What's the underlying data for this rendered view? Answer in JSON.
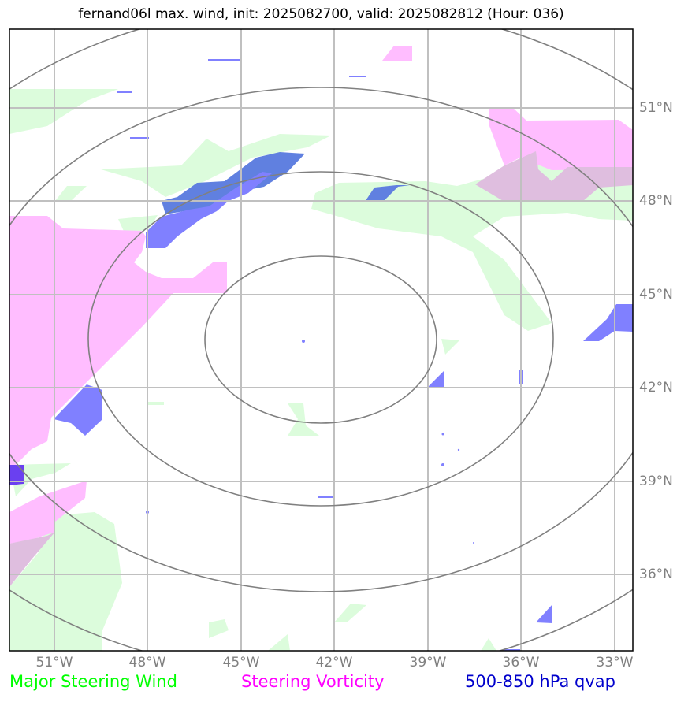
{
  "title": "fernand06l max. wind, init: 2025082700, valid: 2025082812 (Hour: 036)",
  "x_ticks": [
    "51°W",
    "48°W",
    "45°W",
    "42°W",
    "39°W",
    "36°W",
    "33°W"
  ],
  "y_ticks": [
    "51°N",
    "48°N",
    "45°N",
    "42°N",
    "39°N",
    "36°N"
  ],
  "legend": [
    {
      "label": "Major Steering Wind",
      "color": "#00ff00"
    },
    {
      "label": "Steering Vorticity",
      "color": "#ff00ff"
    },
    {
      "label": "500-850 hPa qvap",
      "color": "#0000cc"
    }
  ],
  "layers": {
    "wind_color": "#dcfcdc",
    "vorticity_color": "#ffbdff",
    "overlap_color": "#dfbedf",
    "qvap_color": "#8080ff",
    "qvap_dark_color": "#6080e0",
    "ring_color": "#808080",
    "grid_color": "#c0c0c0"
  }
}
